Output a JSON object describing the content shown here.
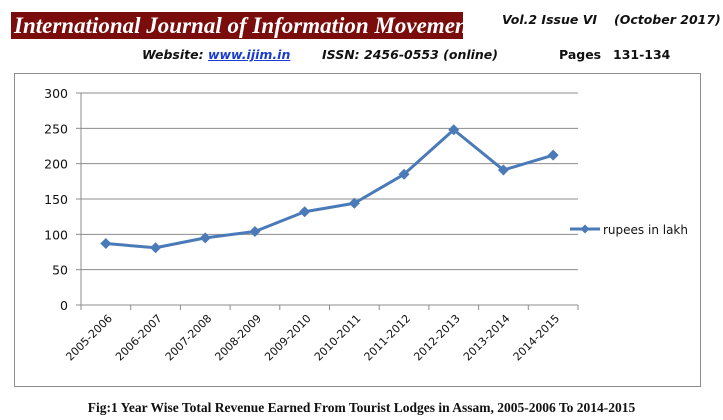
{
  "header": {
    "journal_title": "International Journal of Information Movement",
    "volume_issue": "Vol.2  Issue VI",
    "date": "(October 2017)",
    "website_label": "Website:",
    "website_link": "www.ijim.in",
    "issn": "ISSN: 2456-0553 (online)",
    "pages_label": "Pages",
    "pages_value": "131-134"
  },
  "colors": {
    "banner": "#7a0c0c",
    "series": "#4a7ab8",
    "grid": "#8c8c8c",
    "link": "#1a3ccf"
  },
  "chart_data": {
    "type": "line",
    "title": "",
    "xlabel": "",
    "ylabel": "",
    "ylim": [
      0,
      300
    ],
    "yticks": [
      0,
      50,
      100,
      150,
      200,
      250,
      300
    ],
    "grid": true,
    "legend_position": "right",
    "categories": [
      "2005-2006",
      "2006-2007",
      "2007-2008",
      "2008-2009",
      "2009-2010",
      "2010-2011",
      "2011-2012",
      "2012-2013",
      "2013-2014",
      "2014-2015"
    ],
    "series": [
      {
        "name": "rupees in lakh",
        "marker": "diamond",
        "values": [
          87,
          81,
          95,
          104,
          132,
          144,
          185,
          248,
          191,
          212
        ]
      }
    ]
  },
  "caption": "Fig:1 Year Wise Total Revenue Earned From Tourist Lodges in Assam, 2005-2006 To 2014-2015"
}
